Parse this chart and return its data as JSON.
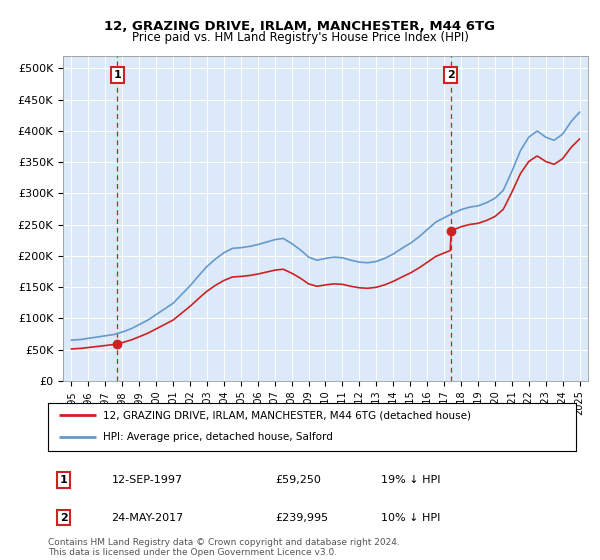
{
  "title": "12, GRAZING DRIVE, IRLAM, MANCHESTER, M44 6TG",
  "subtitle": "Price paid vs. HM Land Registry's House Price Index (HPI)",
  "ylim": [
    0,
    520000
  ],
  "yticks": [
    0,
    50000,
    100000,
    150000,
    200000,
    250000,
    300000,
    350000,
    400000,
    450000,
    500000
  ],
  "ytick_labels": [
    "£0",
    "£50K",
    "£100K",
    "£150K",
    "£200K",
    "£250K",
    "£300K",
    "£350K",
    "£400K",
    "£450K",
    "£500K"
  ],
  "sale1_year": 1997.7,
  "sale1_price": 59250,
  "sale1_label": "1",
  "sale1_date": "12-SEP-1997",
  "sale1_display": "£59,250",
  "sale1_hpi": "19% ↓ HPI",
  "sale2_year": 2017.4,
  "sale2_price": 239995,
  "sale2_label": "2",
  "sale2_date": "24-MAY-2017",
  "sale2_display": "£239,995",
  "sale2_hpi": "10% ↓ HPI",
  "legend_line1": "12, GRAZING DRIVE, IRLAM, MANCHESTER, M44 6TG (detached house)",
  "legend_line2": "HPI: Average price, detached house, Salford",
  "footer": "Contains HM Land Registry data © Crown copyright and database right 2024.\nThis data is licensed under the Open Government Licence v3.0.",
  "hpi_color": "#6699cc",
  "price_color": "#cc2222",
  "plot_bg_color": "#dce9f8",
  "grid_color": "#ffffff",
  "vline_color": "#cc2222"
}
